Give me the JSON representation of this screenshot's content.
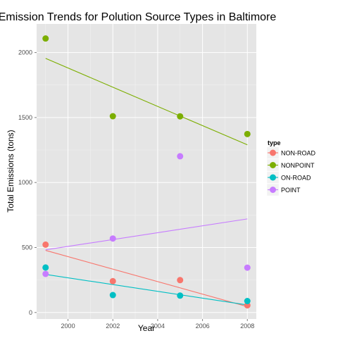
{
  "chart_data": {
    "type": "scatter",
    "title": "Emission Trends for Polution Source Types in Baltimore",
    "xlabel": "Year",
    "ylabel": "Total Emissions (tons)",
    "xlim": [
      1998.6,
      2008.4
    ],
    "ylim": [
      -50,
      2220
    ],
    "x_ticks": [
      2000,
      2002,
      2004,
      2006,
      2008
    ],
    "y_ticks": [
      0,
      500,
      1000,
      1500,
      2000
    ],
    "grid": true,
    "legend": {
      "title": "type",
      "position": "right"
    },
    "trend_lines": true,
    "series": [
      {
        "name": "NON-ROAD",
        "color": "#F8766D",
        "x": [
          1999,
          2002,
          2005,
          2008
        ],
        "y": [
          522,
          241,
          249,
          55
        ],
        "trend": [
          {
            "x": 1999,
            "y": 478
          },
          {
            "x": 2008,
            "y": 45
          }
        ]
      },
      {
        "name": "NONPOINT",
        "color": "#7CAE00",
        "x": [
          1999,
          2002,
          2005,
          2008
        ],
        "y": [
          2108,
          1510,
          1509,
          1373
        ],
        "trend": [
          {
            "x": 1999,
            "y": 1955
          },
          {
            "x": 2008,
            "y": 1290
          }
        ]
      },
      {
        "name": "ON-ROAD",
        "color": "#00BFC4",
        "x": [
          1999,
          2002,
          2005,
          2008
        ],
        "y": [
          346,
          134,
          130,
          88
        ],
        "trend": [
          {
            "x": 1999,
            "y": 293
          },
          {
            "x": 2008,
            "y": 58
          }
        ]
      },
      {
        "name": "POINT",
        "color": "#C77CFF",
        "x": [
          1999,
          2002,
          2005,
          2008
        ],
        "y": [
          297,
          569,
          1202,
          345
        ],
        "trend": [
          {
            "x": 1999,
            "y": 482
          },
          {
            "x": 2008,
            "y": 720
          }
        ]
      }
    ]
  }
}
